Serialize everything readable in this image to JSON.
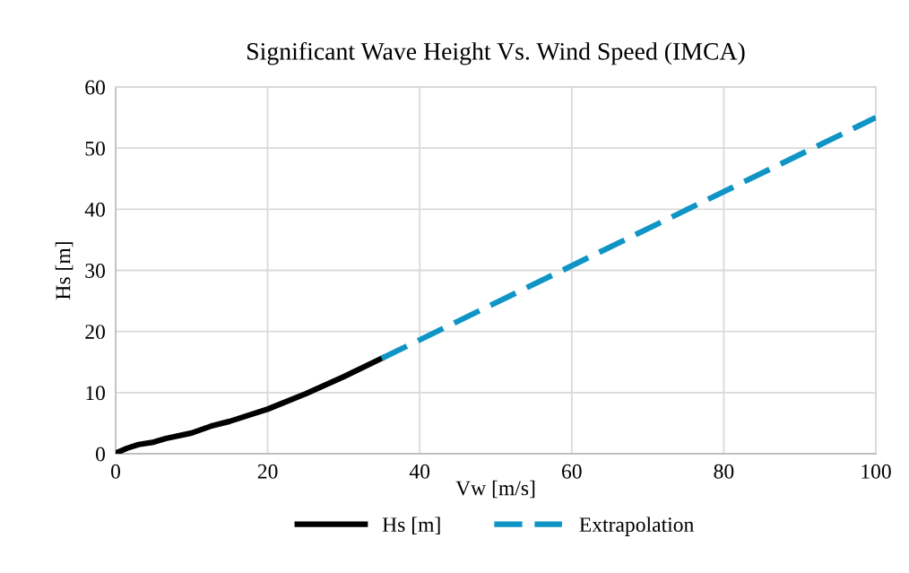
{
  "chart_data": {
    "type": "line",
    "title": "Significant Wave Height Vs. Wind Speed (IMCA)",
    "xlabel": "Vw [m/s]",
    "ylabel": "Hs [m]",
    "series": [
      {
        "name": "Hs [m]",
        "color": "#000000",
        "line_style": "solid",
        "x": [
          0,
          1.5,
          3,
          5,
          6.6,
          10,
          12.5,
          15,
          20,
          25,
          30,
          35
        ],
        "values": [
          0.1,
          0.9,
          1.5,
          1.9,
          2.5,
          3.4,
          4.5,
          5.3,
          7.3,
          9.8,
          12.6,
          15.6
        ]
      },
      {
        "name": "Extrapolation",
        "color": "#0e95c5",
        "line_style": "dashed",
        "x": [
          35,
          100
        ],
        "values": [
          15.6,
          55
        ]
      }
    ],
    "xlim": [
      0,
      100
    ],
    "xticks": [
      0,
      20,
      40,
      60,
      80,
      100
    ],
    "ylim": [
      0,
      60
    ],
    "yticks": [
      0,
      10,
      20,
      30,
      40,
      50,
      60
    ],
    "grid": true,
    "legend": "bottom",
    "marker": "none"
  }
}
